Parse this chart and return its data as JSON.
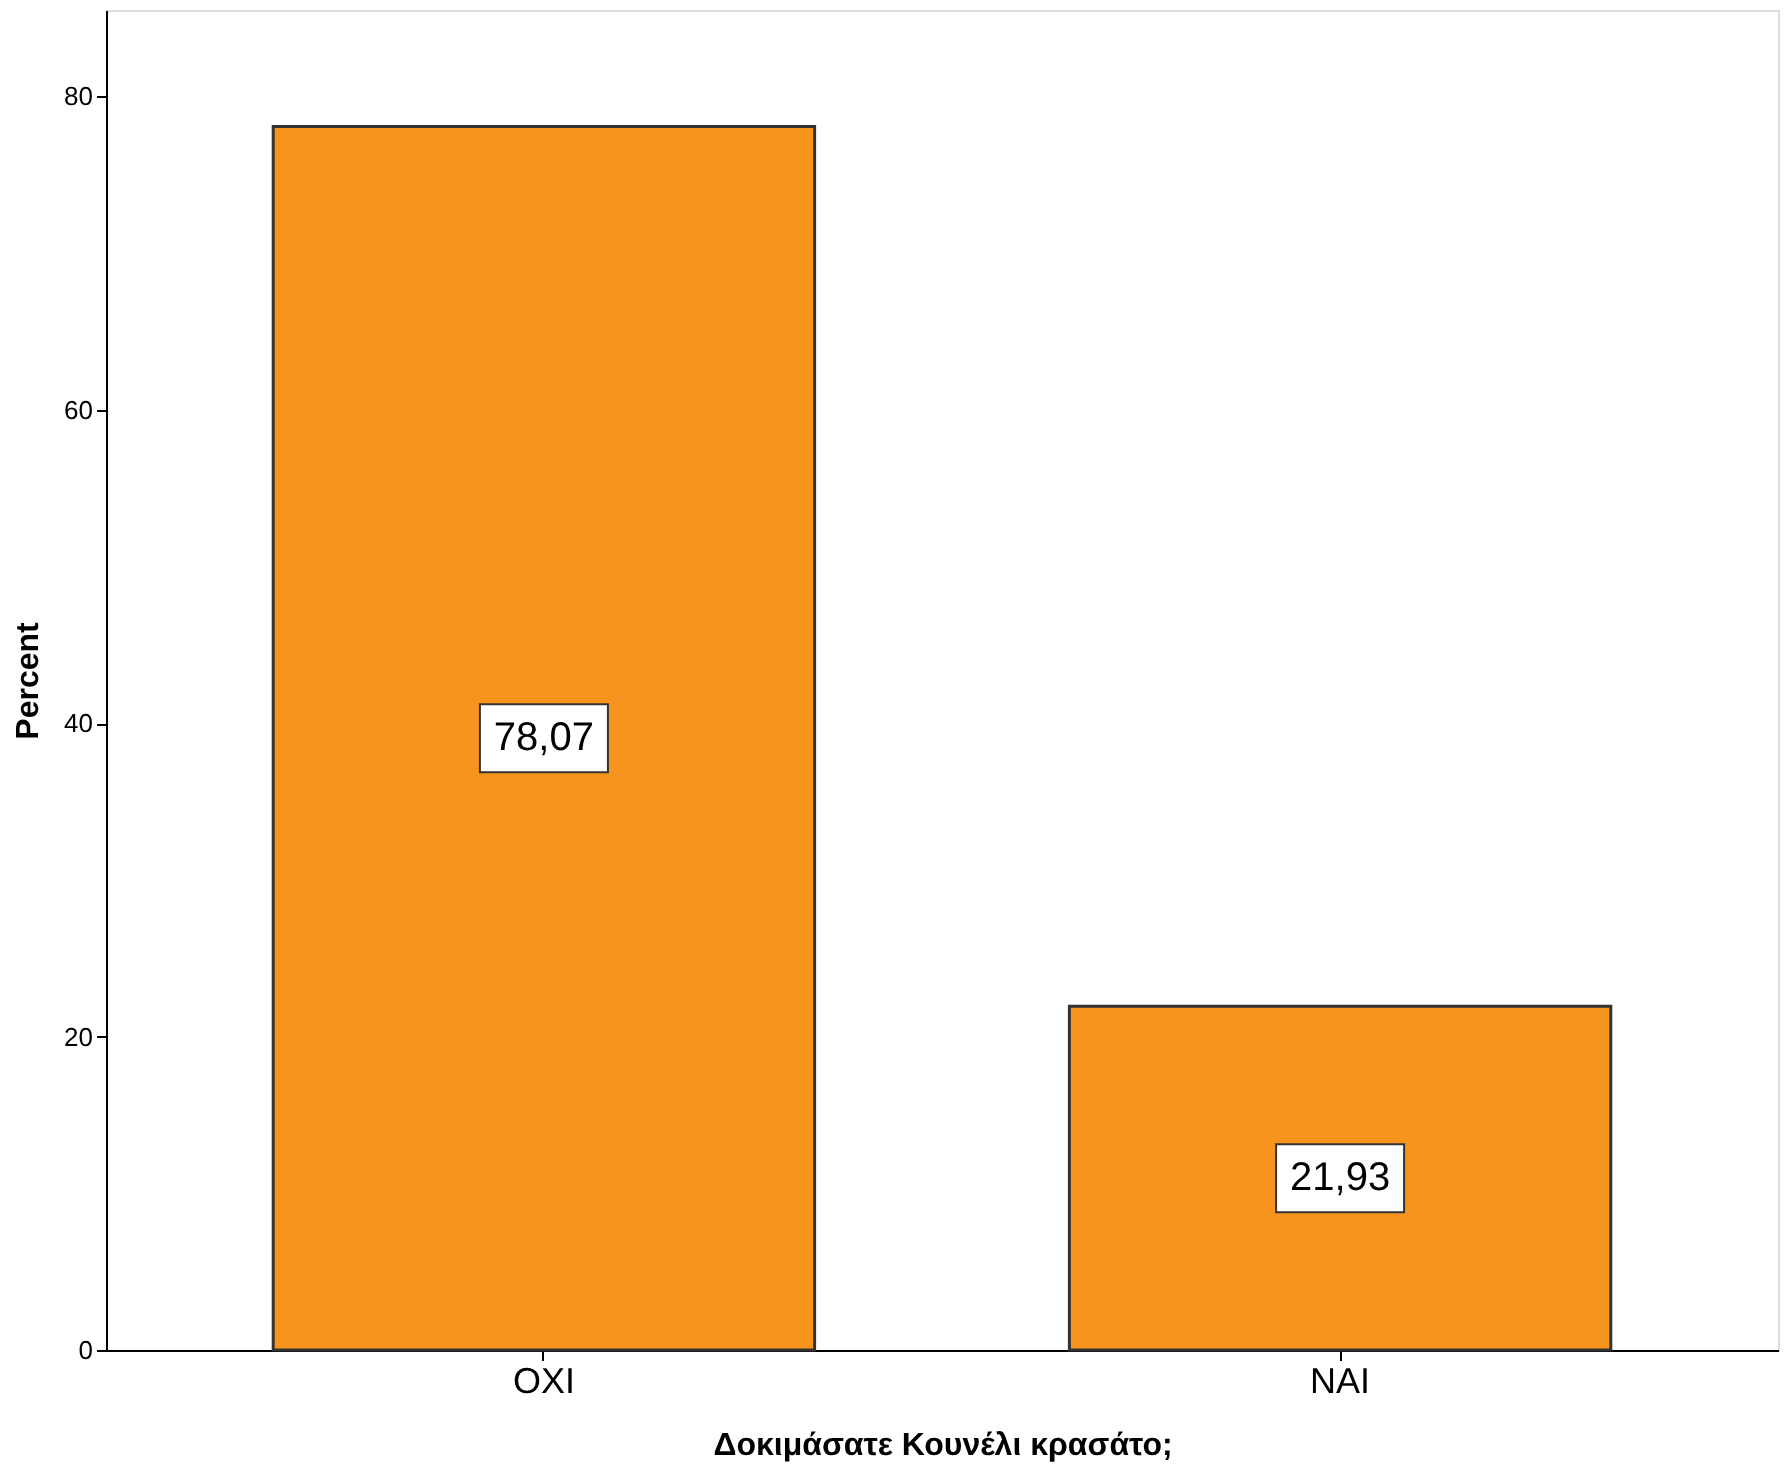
{
  "chart_data": {
    "type": "bar",
    "xlabel": "Δοκιμάσατε Κουνέλι κρασάτο;",
    "ylabel": "Percent",
    "categories": [
      "ΟΧΙ",
      "ΝΑΙ"
    ],
    "values": [
      78.07,
      21.93
    ],
    "value_labels": [
      "78,07",
      "21,93"
    ],
    "color": "#f7941d",
    "ylim": [
      0,
      85.5
    ],
    "yticks": [
      0,
      20,
      40,
      60,
      80
    ],
    "grid": false
  }
}
